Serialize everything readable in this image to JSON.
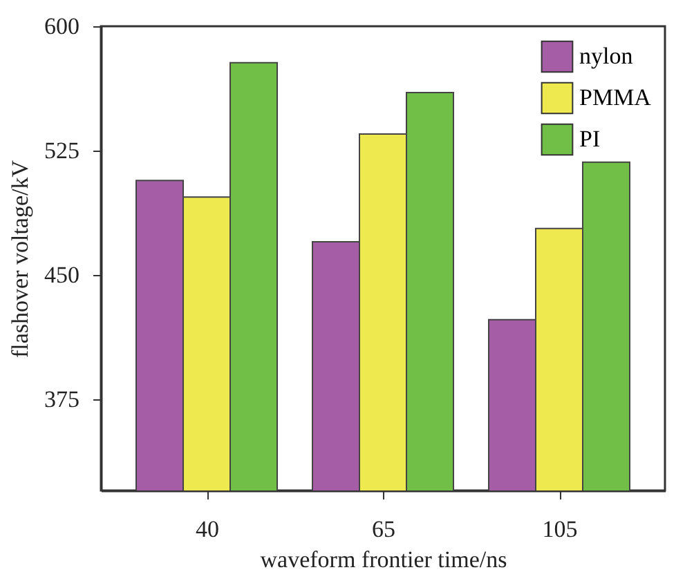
{
  "chart_data": {
    "type": "bar",
    "xlabel": "waveform frontier time/ns",
    "ylabel": "flashover voltage/kV",
    "categories": [
      "40",
      "65",
      "105"
    ],
    "series": [
      {
        "name": "nylon",
        "color": "#a55ea5",
        "values": [
          507,
          470,
          423
        ]
      },
      {
        "name": "PMMA",
        "color": "#ede94f",
        "values": [
          497,
          535,
          478
        ]
      },
      {
        "name": "PI",
        "color": "#71bf47",
        "values": [
          578,
          560,
          518
        ]
      }
    ],
    "ylim": [
      320,
      600
    ],
    "yticks": [
      375,
      450,
      525,
      600
    ],
    "grid": false,
    "legend": "top right"
  }
}
